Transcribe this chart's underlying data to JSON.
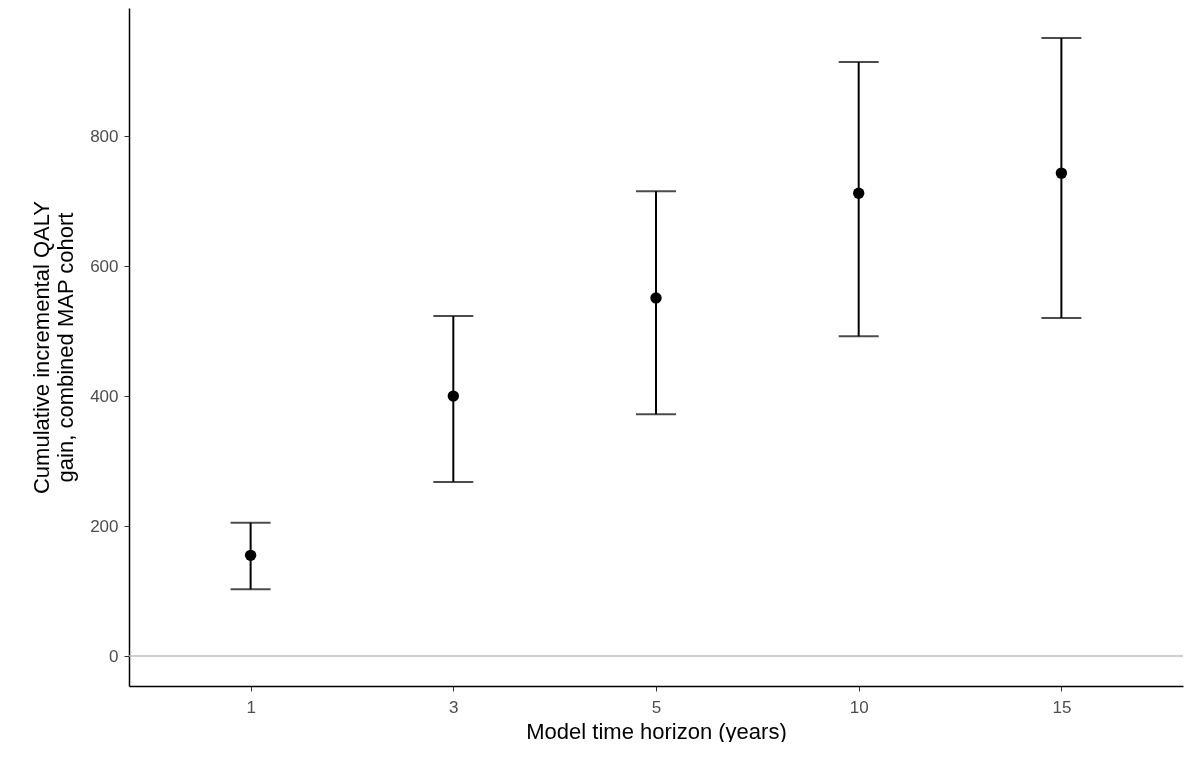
{
  "chart_data": {
    "type": "scatter",
    "xlabel": "Model time horizon (years)",
    "ylabel": "Cumulative incremental QALY gain, combined MAP cohort",
    "categories": [
      "1",
      "3",
      "5",
      "10",
      "15"
    ],
    "series": [
      {
        "color": "#000000",
        "values": [
          155,
          400,
          551,
          712,
          743
        ],
        "errors": [
          [
            103,
            205
          ],
          [
            268,
            523
          ],
          [
            372,
            715
          ],
          [
            492,
            914
          ],
          [
            520,
            951
          ]
        ]
      }
    ],
    "ylim": [
      -46,
      997
    ],
    "yticks": [
      0,
      200,
      400,
      600,
      800
    ],
    "ref_lines": [
      {
        "axis": "y",
        "value": 0,
        "color": "#bebebe"
      }
    ],
    "grid": false,
    "legend": false,
    "marker": "circle"
  }
}
